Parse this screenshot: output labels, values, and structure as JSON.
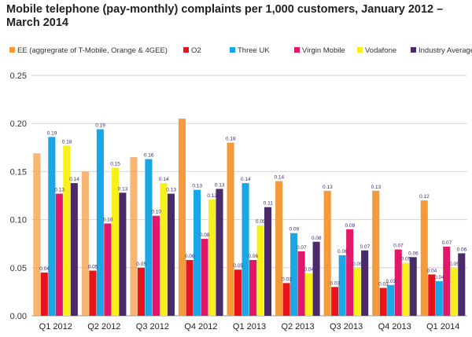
{
  "chart_data": {
    "type": "bar",
    "title": "Mobile telephone (pay-monthly) complaints per 1,000 customers, January 2012 – March 2014",
    "categories": [
      "Q1 2012",
      "Q2 2012",
      "Q3 2012",
      "Q4 2012",
      "Q1 2013",
      "Q2 2013",
      "Q3 2013",
      "Q4 2013",
      "Q1 2014"
    ],
    "yticks": [
      "0.00",
      "0.05",
      "0.10",
      "0.15",
      "0.20",
      "0.25"
    ],
    "ylim": [
      0,
      0.25
    ],
    "grid": true,
    "legend_position": "top",
    "series": [
      {
        "name": "EE (aggregrate of T-Mobile, Orange & 4GEE)",
        "color": "#f59a3b",
        "values": [
          0.169,
          0.15,
          0.165,
          0.205,
          0.18,
          0.14,
          0.13,
          0.13,
          0.12
        ],
        "labels": [
          "",
          "",
          "",
          "",
          "0.18",
          "0.14",
          "0.13",
          "0.13",
          "0.12"
        ],
        "faded": [
          true,
          true,
          true,
          false,
          false,
          false,
          false,
          false,
          false
        ]
      },
      {
        "name": "O2",
        "color": "#e8141c",
        "values": [
          0.045,
          0.047,
          0.05,
          0.058,
          0.048,
          0.034,
          0.03,
          0.029,
          0.043
        ],
        "labels": [
          "0.04",
          "0.05",
          "0.05",
          "0.06",
          "0.05",
          "0.03",
          "0.03",
          "0.03",
          "0.04"
        ],
        "faded": [
          false,
          false,
          false,
          false,
          false,
          false,
          false,
          false,
          false
        ]
      },
      {
        "name": "Three UK",
        "color": "#1aa7e6",
        "values": [
          0.186,
          0.194,
          0.163,
          0.131,
          0.138,
          0.086,
          0.063,
          0.032,
          0.036
        ],
        "labels": [
          "0.19",
          "0.19",
          "0.16",
          "0.13",
          "0.14",
          "0.09",
          "0.06",
          "0.03",
          "0.04"
        ],
        "faded": [
          false,
          false,
          false,
          false,
          false,
          false,
          false,
          false,
          false
        ]
      },
      {
        "name": "Virgin Mobile",
        "color": "#e3176a",
        "values": [
          0.127,
          0.096,
          0.104,
          0.08,
          0.058,
          0.067,
          0.09,
          0.069,
          0.072
        ],
        "labels": [
          "0.13",
          "0.10",
          "0.10",
          "0.08",
          "0.06",
          "0.07",
          "0.09",
          "0.07",
          "0.07"
        ],
        "faded": [
          false,
          false,
          false,
          false,
          false,
          false,
          false,
          false,
          false
        ]
      },
      {
        "name": "Vodafone",
        "color": "#f7f01a",
        "values": [
          0.177,
          0.154,
          0.138,
          0.121,
          0.094,
          0.044,
          0.05,
          0.055,
          0.05
        ],
        "labels": [
          "0.18",
          "0.15",
          "0.14",
          "0.12",
          "0.09",
          "0.04",
          "0.05",
          "0.05",
          "0.05"
        ],
        "faded": [
          false,
          false,
          false,
          false,
          false,
          false,
          false,
          false,
          false
        ]
      },
      {
        "name": "Industry Average",
        "color": "#4b2a6b",
        "values": [
          0.138,
          0.128,
          0.127,
          0.132,
          0.113,
          0.077,
          0.068,
          0.061,
          0.065
        ],
        "labels": [
          "0.14",
          "0.13",
          "0.13",
          "0.13",
          "0.11",
          "0.08",
          "0.07",
          "0.06",
          "0.06"
        ],
        "faded": [
          false,
          false,
          false,
          false,
          false,
          false,
          false,
          false,
          false
        ]
      }
    ]
  }
}
